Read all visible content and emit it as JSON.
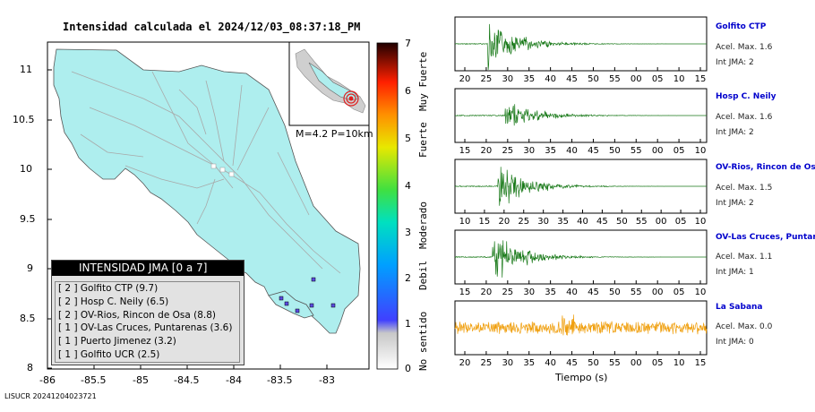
{
  "title": "Intensidad calculada el 2024/12/03_08:37:18_PM",
  "footer_id": "LISUCR 20241204023721",
  "map": {
    "lat_ticks": [
      "11",
      "10.5",
      "10",
      "9.5",
      "9",
      "8.5",
      "8"
    ],
    "lon_ticks": [
      "-86",
      "-85.5",
      "-85",
      "-84.5",
      "-84",
      "-83.5",
      "-83"
    ],
    "land_color": "#aeeeee",
    "inset_label": "M=4.2 P=10km",
    "epicenter_color": "#e02020"
  },
  "legend": {
    "title": "INTENSIDAD JMA [0 a 7]",
    "rows": [
      "[ 2 ]  Golfito CTP (9.7)",
      "[ 2 ]  Hosp C. Neily (6.5)",
      "[ 2 ]  OV-Rios, Rincon de Osa (8.8)",
      "[ 1 ]  OV-Las Cruces, Puntarenas (3.6)",
      "[ 1 ]  Puerto Jimenez (3.2)",
      "[ 1 ]  Golfito UCR (2.5)"
    ]
  },
  "scale": {
    "ticks": [
      "7",
      "6",
      "5",
      "4",
      "3",
      "2",
      "1",
      "0"
    ],
    "categories": [
      "Muy Fuerte",
      "Fuerte",
      "Moderado",
      "Debil",
      "No sentido"
    ]
  },
  "stations": [
    {
      "name": "Golfito CTP",
      "accel": "Acel. Max. 1.6",
      "int": "Int JMA: 2",
      "color": "#1a7a1a",
      "ticks": [
        "20",
        "25",
        "30",
        "35",
        "40",
        "45",
        "50",
        "55",
        "00",
        "05",
        "10",
        "15"
      ]
    },
    {
      "name": "Hosp C. Neily",
      "accel": "Acel. Max. 1.6",
      "int": "Int JMA: 2",
      "color": "#1a7a1a",
      "ticks": [
        "15",
        "20",
        "25",
        "30",
        "35",
        "40",
        "45",
        "50",
        "55",
        "00",
        "05",
        "10"
      ]
    },
    {
      "name": "OV-Rios, Rincon de Os",
      "accel": "Acel. Max. 1.5",
      "int": "Int JMA: 2",
      "color": "#1a7a1a",
      "ticks": [
        "10",
        "15",
        "20",
        "25",
        "30",
        "35",
        "40",
        "45",
        "50",
        "55",
        "00",
        "05",
        "10"
      ]
    },
    {
      "name": "OV-Las Cruces, Puntar",
      "accel": "Acel. Max. 1.1",
      "int": "Int JMA: 1",
      "color": "#1a7a1a",
      "ticks": [
        "15",
        "20",
        "25",
        "30",
        "35",
        "40",
        "45",
        "50",
        "55",
        "00",
        "05",
        "10"
      ]
    },
    {
      "name": "La Sabana",
      "accel": "Acel. Max. 0.0",
      "int": "Int JMA: 0",
      "color": "#f0a010",
      "ticks": [
        "20",
        "25",
        "30",
        "35",
        "40",
        "45",
        "50",
        "55",
        "00",
        "05",
        "10",
        "15"
      ]
    }
  ],
  "time_axis_label": "Tiempo (s)"
}
